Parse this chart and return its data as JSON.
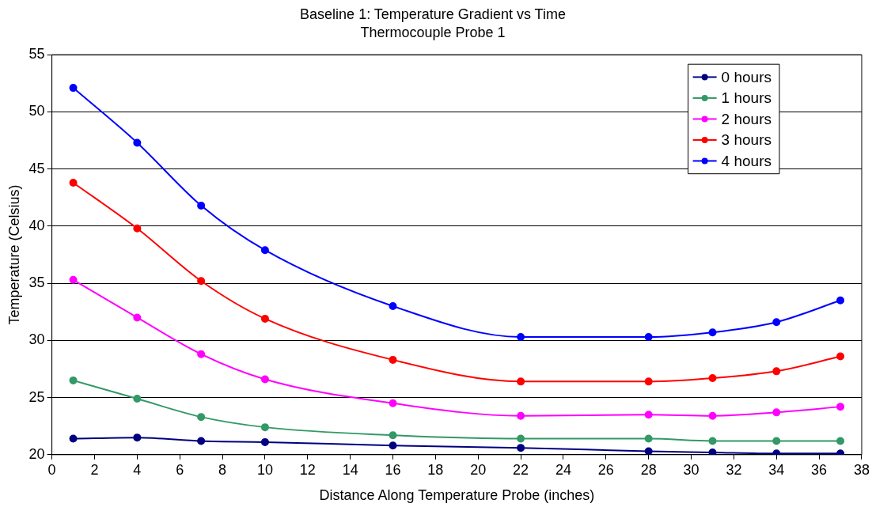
{
  "chart_data": {
    "type": "line",
    "title": "Baseline 1: Temperature Gradient vs Time",
    "subtitle": "Thermocouple Probe 1",
    "xlabel": "Distance Along Temperature Probe (inches)",
    "ylabel": "Temperature (Celsius)",
    "x": [
      1,
      4,
      7,
      10,
      16,
      22,
      28,
      31,
      34,
      37
    ],
    "series": [
      {
        "name": "0 hours",
        "color": "#000080",
        "values": [
          21.4,
          21.5,
          21.2,
          21.1,
          20.8,
          20.6,
          20.3,
          20.2,
          20.1,
          20.1
        ]
      },
      {
        "name": "1 hours",
        "color": "#339966",
        "values": [
          26.5,
          24.9,
          23.3,
          22.4,
          21.7,
          21.4,
          21.4,
          21.2,
          21.2,
          21.2
        ]
      },
      {
        "name": "2 hours",
        "color": "#ff00ff",
        "values": [
          35.3,
          32.0,
          28.8,
          26.6,
          24.5,
          23.4,
          23.5,
          23.4,
          23.7,
          24.2
        ]
      },
      {
        "name": "3 hours",
        "color": "#ff0000",
        "values": [
          43.8,
          39.8,
          35.2,
          31.9,
          28.3,
          26.4,
          26.4,
          26.7,
          27.3,
          28.6
        ]
      },
      {
        "name": "4 hours",
        "color": "#0000ff",
        "values": [
          52.1,
          47.3,
          41.8,
          37.9,
          33.0,
          30.3,
          30.3,
          30.7,
          31.6,
          33.5
        ]
      }
    ],
    "xlim": [
      0,
      38
    ],
    "xticks": [
      0,
      2,
      4,
      6,
      8,
      10,
      12,
      14,
      16,
      18,
      20,
      22,
      24,
      26,
      28,
      30,
      32,
      34,
      36,
      38
    ],
    "ylim": [
      20,
      55
    ],
    "yticks": [
      20,
      25,
      30,
      35,
      40,
      45,
      50,
      55
    ],
    "grid": "y",
    "legend": "top right",
    "marker": "circle",
    "line_style": "solid"
  }
}
